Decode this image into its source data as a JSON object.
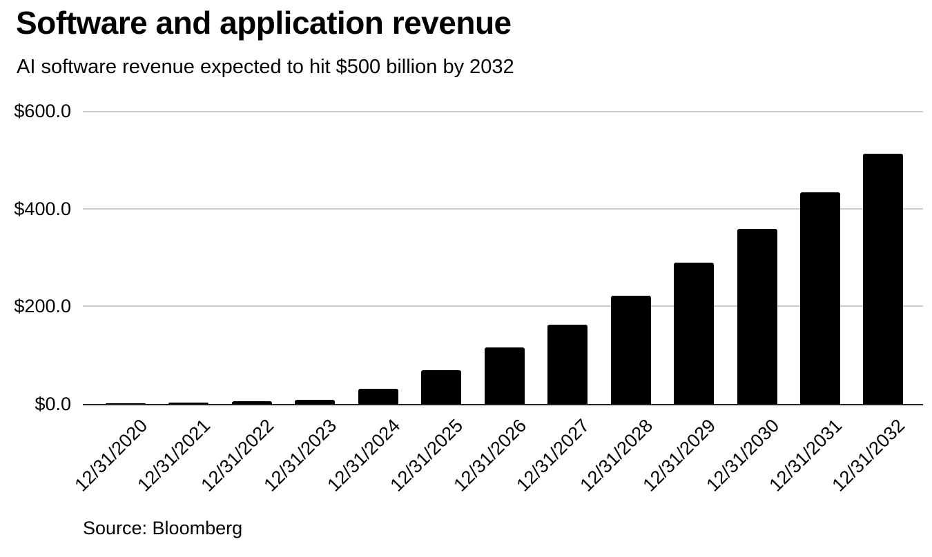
{
  "header": {
    "title": "Software and application revenue",
    "subtitle": "AI software revenue expected to hit $500 billion by 2032"
  },
  "footer": {
    "source": "Source: Bloomberg"
  },
  "chart_data": {
    "type": "bar",
    "title": "Software and application revenue",
    "subtitle": "AI software revenue expected to hit $500 billion by 2032",
    "categories": [
      "12/31/2020",
      "12/31/2021",
      "12/31/2022",
      "12/31/2023",
      "12/31/2024",
      "12/31/2025",
      "12/31/2026",
      "12/31/2027",
      "12/31/2028",
      "12/31/2029",
      "12/31/2030",
      "12/31/2031",
      "12/31/2032"
    ],
    "values": [
      2,
      3,
      5,
      8,
      31,
      69,
      116,
      162,
      221,
      290,
      358,
      434,
      512
    ],
    "values_unit": "USD billions",
    "xlabel": "",
    "ylabel": "",
    "ylim": [
      0,
      600
    ],
    "y_ticks": [
      {
        "value": 0,
        "label": "$0.0"
      },
      {
        "value": 200,
        "label": "$200.0"
      },
      {
        "value": 400,
        "label": "$400.0"
      },
      {
        "value": 600,
        "label": "$600.0"
      }
    ],
    "grid": true,
    "legend_position": "none",
    "bar_color": "#000000",
    "grid_color": "#cccccc",
    "axis_color": "#222222",
    "source": "Source: Bloomberg"
  }
}
